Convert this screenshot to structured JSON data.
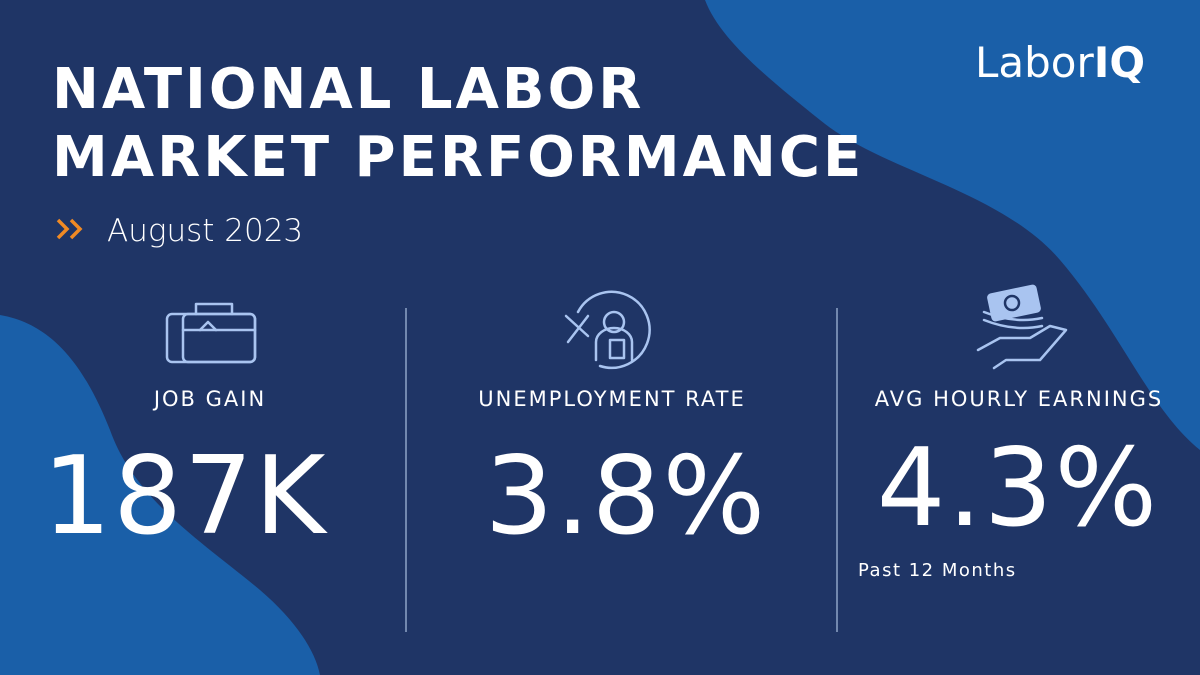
{
  "header": {
    "title_lines": [
      "NATIONAL LABOR",
      "MARKET PERFORMANCE"
    ],
    "subtitle": "August 2023"
  },
  "logo": {
    "prefix": "Labor",
    "suffix": "IQ"
  },
  "stats": [
    {
      "label": "JOB GAIN",
      "value": "187K"
    },
    {
      "label": "UNEMPLOYMENT RATE",
      "value": "3.8%"
    },
    {
      "label": "AVG HOURLY EARNINGS",
      "value": "4.3%",
      "note": "Past 12 Months"
    }
  ]
}
